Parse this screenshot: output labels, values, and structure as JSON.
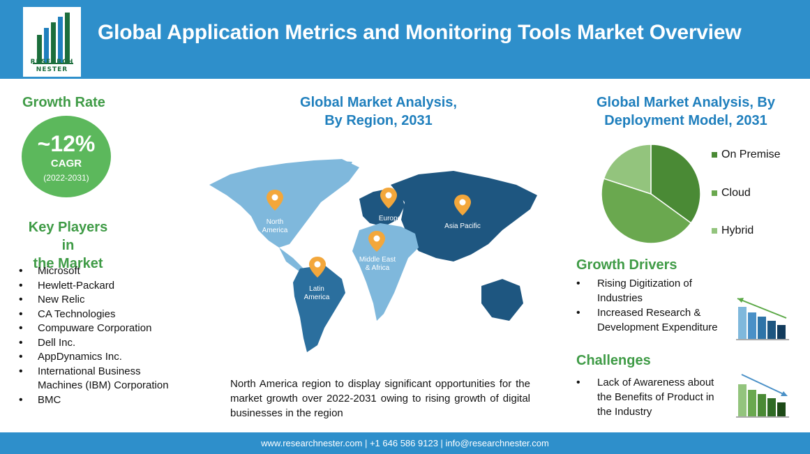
{
  "header": {
    "title": "Global Application Metrics and Monitoring Tools Market Overview",
    "logo_line1": "RESEARCH",
    "logo_line2": "NESTER"
  },
  "growth": {
    "heading": "Growth Rate",
    "value": "~12%",
    "label": "CAGR",
    "period": "(2022-2031)"
  },
  "key_players": {
    "heading_line1": "Key Players in",
    "heading_line2": "the Market",
    "items": [
      "Microsoft",
      "Hewlett-Packard",
      "New Relic",
      "CA Technologies",
      "Compuware Corporation",
      "Dell Inc.",
      "AppDynamics Inc.",
      "International Business Machines (IBM) Corporation",
      "BMC"
    ]
  },
  "region": {
    "heading_line1": "Global Market Analysis,",
    "heading_line2": "By Region, 2031",
    "labels": {
      "north_america": [
        "North",
        "America"
      ],
      "europe": "Europe",
      "asia_pacific": "Asia Pacific",
      "mea": [
        "Middle East",
        "& Africa"
      ],
      "latin_america": [
        "Latin",
        "America"
      ]
    },
    "description": "North America region to display significant opportunities for the market growth over 2022-2031 owing to rising growth of digital businesses in the region"
  },
  "deployment": {
    "heading_line1": "Global Market Analysis, By",
    "heading_line2": "Deployment Model, 2031",
    "legend": [
      {
        "name": "On Premise",
        "color": "#4a8a35"
      },
      {
        "name": "Cloud",
        "color": "#6aa84f"
      },
      {
        "name": "Hybrid",
        "color": "#93c47d"
      }
    ]
  },
  "chart_data": {
    "type": "pie",
    "labels": [
      "On Premise",
      "Cloud",
      "Hybrid"
    ],
    "values": [
      35,
      45,
      20
    ],
    "colors": [
      "#4a8a35",
      "#6aa84f",
      "#93c47d"
    ],
    "legend_position": "right"
  },
  "growth_drivers": {
    "heading": "Growth Drivers",
    "items": [
      "Rising Digitization of Industries",
      "Increased Research & Development Expenditure"
    ]
  },
  "challenges": {
    "heading": "Challenges",
    "items": [
      "Lack of Awareness about the Benefits of Product in the Industry"
    ]
  },
  "footer": {
    "text": "www.researchnester.com  |  +1 646 586 9123  |  info@researchnester.com"
  }
}
